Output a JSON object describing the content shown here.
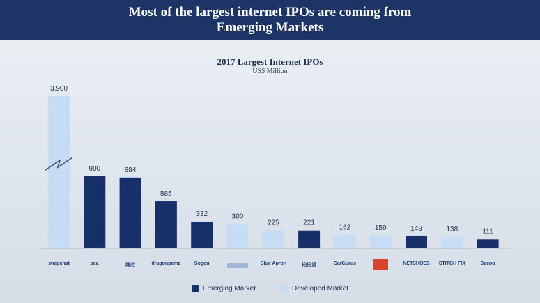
{
  "header": {
    "line1": "Most of the largest internet IPOs are coming from",
    "line2": "Emerging Markets"
  },
  "colors": {
    "emerging": "#17306a",
    "developed": "#c6dcf4",
    "header_bg": "#1c3566"
  },
  "chart_data": {
    "type": "bar",
    "title": "2017 Largest Internet IPOs",
    "subtitle": "US$ Million",
    "axis_break": true,
    "categories": [
      "snapchat",
      "sea",
      "趣店",
      "dragonpama",
      "Sogou",
      "",
      "Blue Apron",
      "拍拍贷",
      "CarGurus",
      "",
      "NETSHOES",
      "STITCH FIX",
      "Secoo"
    ],
    "values": [
      3900,
      900,
      884,
      585,
      332,
      300,
      225,
      221,
      162,
      159,
      149,
      138,
      111
    ],
    "value_labels": [
      "3,900",
      "900",
      "884",
      "585",
      "332",
      "300",
      "225",
      "221",
      "162",
      "159",
      "149",
      "138",
      "111"
    ],
    "market": [
      "developed",
      "emerging",
      "emerging",
      "emerging",
      "emerging",
      "developed",
      "developed",
      "emerging",
      "developed",
      "developed",
      "emerging",
      "developed",
      "emerging"
    ],
    "legend": [
      {
        "key": "emerging",
        "label": "Emerging Market"
      },
      {
        "key": "developed",
        "label": "Developed Market"
      }
    ],
    "legend_position": "bottom"
  }
}
